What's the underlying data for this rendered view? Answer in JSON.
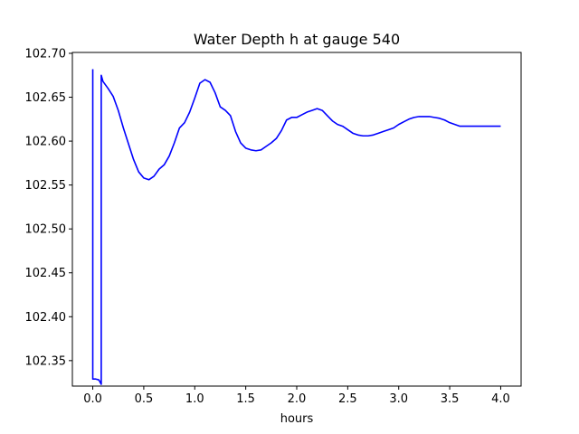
{
  "chart_data": {
    "type": "line",
    "title": "Water Depth h at gauge 540",
    "xlabel": "hours",
    "ylabel": "",
    "xlim": [
      -0.2,
      4.2
    ],
    "ylim": [
      102.321,
      102.701
    ],
    "xticks": [
      0.0,
      0.5,
      1.0,
      1.5,
      2.0,
      2.5,
      3.0,
      3.5,
      4.0
    ],
    "xtick_labels": [
      "0.0",
      "0.5",
      "1.0",
      "1.5",
      "2.0",
      "2.5",
      "3.0",
      "3.5",
      "4.0"
    ],
    "yticks": [
      102.35,
      102.4,
      102.45,
      102.5,
      102.55,
      102.6,
      102.65,
      102.7
    ],
    "ytick_labels": [
      "102.35",
      "102.40",
      "102.45",
      "102.50",
      "102.55",
      "102.60",
      "102.65",
      "102.70"
    ],
    "grid": false,
    "series": [
      {
        "color": "#0000ff",
        "x": [
          0.0,
          0.0,
          0.03,
          0.06,
          0.083,
          0.083,
          0.1,
          0.15,
          0.2,
          0.25,
          0.3,
          0.35,
          0.4,
          0.45,
          0.5,
          0.55,
          0.6,
          0.65,
          0.7,
          0.75,
          0.8,
          0.85,
          0.9,
          0.95,
          1.0,
          1.05,
          1.1,
          1.15,
          1.2,
          1.25,
          1.3,
          1.35,
          1.4,
          1.45,
          1.5,
          1.55,
          1.6,
          1.65,
          1.7,
          1.75,
          1.8,
          1.85,
          1.9,
          1.95,
          2.0,
          2.05,
          2.1,
          2.15,
          2.2,
          2.25,
          2.3,
          2.35,
          2.4,
          2.45,
          2.5,
          2.55,
          2.6,
          2.65,
          2.7,
          2.75,
          2.8,
          2.85,
          2.9,
          2.95,
          3.0,
          3.05,
          3.1,
          3.15,
          3.2,
          3.25,
          3.3,
          3.35,
          3.4,
          3.45,
          3.5,
          3.55,
          3.6,
          3.65,
          3.7,
          3.75,
          3.8,
          3.85,
          3.9,
          3.95,
          4.0
        ],
        "y": [
          102.682,
          102.329,
          102.329,
          102.328,
          102.323,
          102.675,
          102.668,
          102.66,
          102.651,
          102.635,
          102.615,
          102.597,
          102.579,
          102.565,
          102.558,
          102.556,
          102.56,
          102.568,
          102.573,
          102.583,
          102.598,
          102.615,
          102.621,
          102.633,
          102.649,
          102.666,
          102.67,
          102.667,
          102.655,
          102.639,
          102.635,
          102.629,
          102.611,
          102.598,
          102.592,
          102.59,
          102.589,
          102.59,
          102.594,
          102.598,
          102.603,
          102.612,
          102.624,
          102.627,
          102.627,
          102.63,
          102.633,
          102.635,
          102.637,
          102.635,
          102.629,
          102.623,
          102.619,
          102.617,
          102.613,
          102.609,
          102.607,
          102.606,
          102.606,
          102.607,
          102.609,
          102.611,
          102.613,
          102.615,
          102.619,
          102.622,
          102.625,
          102.627,
          102.628,
          102.628,
          102.628,
          102.627,
          102.626,
          102.624,
          102.621,
          102.619,
          102.617,
          102.617,
          102.617,
          102.617,
          102.617,
          102.617,
          102.617,
          102.617,
          102.617
        ]
      }
    ]
  }
}
